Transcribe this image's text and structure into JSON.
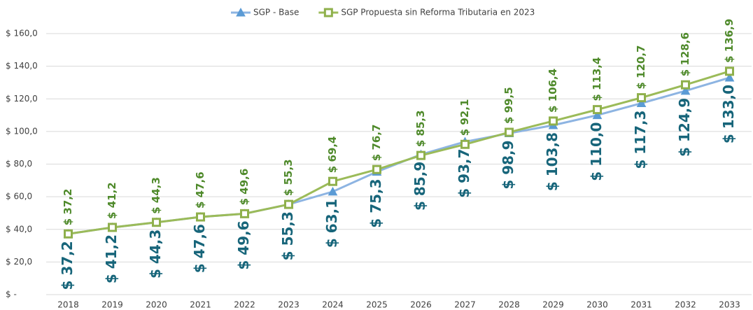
{
  "chart_data": {
    "type": "line",
    "categories": [
      "2018",
      "2019",
      "2020",
      "2021",
      "2022",
      "2023",
      "2024",
      "2025",
      "2026",
      "2027",
      "2028",
      "2029",
      "2030",
      "2031",
      "2032",
      "2033"
    ],
    "series": [
      {
        "name": "SGP - Base",
        "color": "#8db4e2",
        "marker_color": "#5b9bd5",
        "label_color": "#17657a",
        "marker": "triangle",
        "values": [
          37.2,
          41.2,
          44.3,
          47.6,
          49.6,
          55.3,
          63.1,
          75.3,
          85.9,
          93.7,
          98.9,
          103.8,
          110.0,
          117.3,
          124.9,
          133.0
        ],
        "value_labels": [
          "$ 37,2",
          "$ 41,2",
          "$ 44,3",
          "$ 47,6",
          "$ 49,6",
          "$ 55,3",
          "$ 63,1",
          "$ 75,3",
          "$ 85,9",
          "$ 93,7",
          "$ 98,9",
          "$ 103,8",
          "$ 110,0",
          "$ 117,3",
          "$ 124,9",
          "$ 133,0"
        ]
      },
      {
        "name": "SGP Propuesta sin Reforma Tributaria en 2023",
        "color": "#9bbb59",
        "marker_color": "#8fb04c",
        "label_color": "#4f8a2b",
        "marker": "square",
        "values": [
          37.2,
          41.2,
          44.3,
          47.6,
          49.6,
          55.3,
          69.4,
          76.7,
          85.3,
          92.1,
          99.5,
          106.4,
          113.4,
          120.7,
          128.6,
          136.9
        ],
        "value_labels": [
          "$ 37,2",
          "$ 41,2",
          "$ 44,3",
          "$ 47,6",
          "$ 49,6",
          "$ 55,3",
          "$ 69,4",
          "$ 76,7",
          "$ 85,3",
          "$ 92,1",
          "$ 99,5",
          "$ 106,4",
          "$ 113,4",
          "$ 120,7",
          "$ 128,6",
          "$ 136,9"
        ]
      }
    ],
    "ylim": [
      0,
      160
    ],
    "yticks": [
      {
        "value": 0,
        "label": "$ -"
      },
      {
        "value": 20,
        "label": "$ 20,0"
      },
      {
        "value": 40,
        "label": "$ 40,0"
      },
      {
        "value": 60,
        "label": "$ 60,0"
      },
      {
        "value": 80,
        "label": "$ 80,0"
      },
      {
        "value": 100,
        "label": "$ 100,0"
      },
      {
        "value": 120,
        "label": "$ 120,0"
      },
      {
        "value": 140,
        "label": "$ 140,0"
      },
      {
        "value": 160,
        "label": "$ 160,0"
      }
    ],
    "grid": true,
    "legend": "top"
  }
}
